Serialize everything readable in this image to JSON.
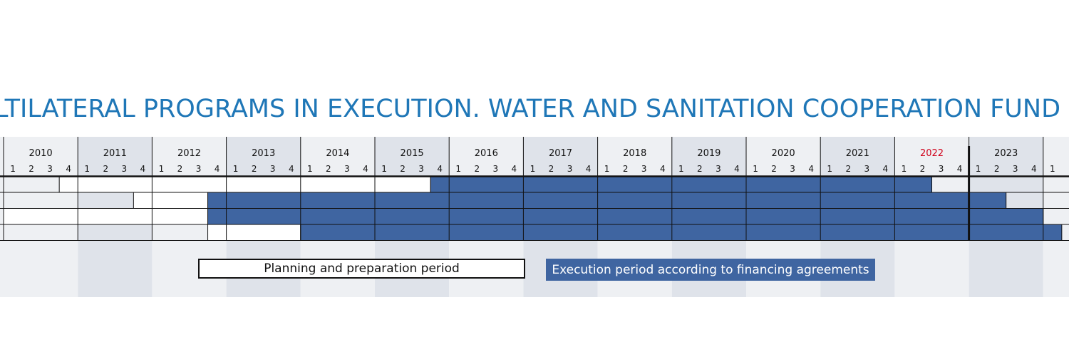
{
  "title": "LTILATERAL PROGRAMS IN EXECUTION. WATER AND SANITATION COOPERATION FUND (D",
  "colors": {
    "title": "#1f77b7",
    "execution": "#3f65a1",
    "planning": "#ffffff",
    "current_year_label": "#d0021b",
    "band_dark": "#dfe3ea",
    "band_light": "#eef0f3"
  },
  "chart_data": {
    "type": "gantt",
    "title": "LTILATERAL PROGRAMS IN EXECUTION. WATER AND SANITATION COOPERATION FUND (D",
    "years": [
      "2010",
      "2011",
      "2012",
      "2013",
      "2014",
      "2015",
      "2016",
      "2017",
      "2018",
      "2019",
      "2020",
      "2021",
      "2022",
      "2023"
    ],
    "quarters": [
      "1",
      "2",
      "3",
      "4"
    ],
    "highlight_year": "2022",
    "current_marker": "2023 Q1",
    "x_range": [
      "2010 Q1",
      "2024 Q1"
    ],
    "legend": [
      {
        "key": "planning",
        "label": "Planning and preparation period"
      },
      {
        "key": "execution",
        "label": "Execution period according to financing agreements"
      }
    ],
    "rows": [
      {
        "planning": [
          "2010 Q4",
          "2015 Q3"
        ],
        "execution": [
          "2015 Q4",
          "2022 Q2"
        ]
      },
      {
        "planning": [
          "2011 Q4",
          "2012 Q3"
        ],
        "execution": [
          "2012 Q4",
          "2023 Q2"
        ]
      },
      {
        "planning": [
          "2010 Q1",
          "2012 Q3"
        ],
        "execution": [
          "2012 Q4",
          "2023 Q4"
        ]
      },
      {
        "planning": [
          "2012 Q4",
          "2013 Q4"
        ],
        "execution": [
          "2014 Q1",
          "2024 Q1"
        ]
      }
    ]
  }
}
